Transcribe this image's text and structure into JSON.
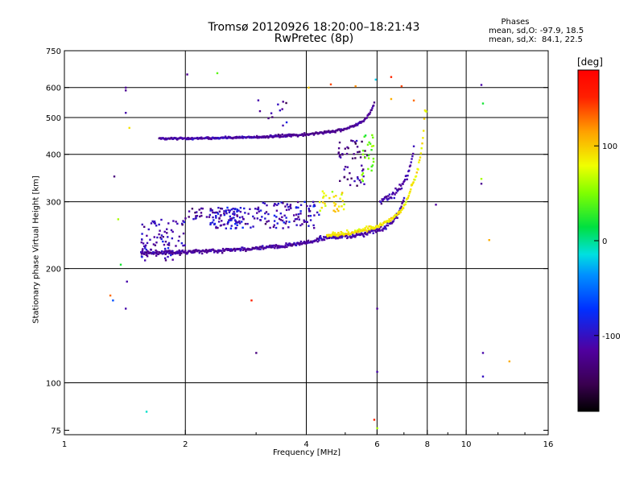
{
  "header": {
    "title_line1": "Tromsø 20120926 18:20:00–18:21:43",
    "title_line2": "RwPretec (8p)"
  },
  "stats": {
    "heading": "Phases",
    "line_o": "mean, sd,O: -97.9, 18.5",
    "line_x": "mean, sd,X:  84.1, 22.5"
  },
  "colorbar": {
    "unit_label": "[deg]",
    "ticks": [
      {
        "value": 100,
        "label": "100"
      },
      {
        "value": 0,
        "label": "0"
      },
      {
        "value": -100,
        "label": "-100"
      }
    ],
    "range": [
      -180,
      180
    ]
  },
  "chart_data": {
    "type": "scatter",
    "title": "Tromsø 20120926 18:20:00–18:21:43",
    "subtitle": "RwPretec (8p)",
    "xlabel": "Frequency [MHz]",
    "ylabel": "Stationary phase Virtual Height [km]",
    "x_scale": "log",
    "y_scale": "log",
    "xlim": [
      1,
      16
    ],
    "ylim": [
      73,
      750
    ],
    "x_ticks": [
      1,
      2,
      4,
      6,
      8,
      10,
      16
    ],
    "y_ticks": [
      75,
      100,
      200,
      300,
      400,
      500,
      600,
      750
    ],
    "grid_x": [
      2,
      4,
      6,
      8,
      10
    ],
    "grid_y": [
      100,
      200,
      300,
      400,
      500,
      600
    ],
    "grid": true,
    "color_by": "phase [deg]",
    "traces": [
      {
        "kind": "curve",
        "x0": 1.72,
        "x1": 3.0,
        "h0": 440,
        "h1": 445,
        "fc": 5.4,
        "phase": -110,
        "spread": 4
      },
      {
        "kind": "curve",
        "x0": 3.0,
        "x1": 5.9,
        "h0": 445,
        "h1": 550,
        "fc": 6.1,
        "phase": -120,
        "spread": 5
      },
      {
        "kind": "curve",
        "x0": 1.55,
        "x1": 4.3,
        "h0": 220,
        "h1": 238,
        "fc": 7.2,
        "phase": -115,
        "spread": 4
      },
      {
        "kind": "curve",
        "x0": 4.3,
        "x1": 7.0,
        "h0": 240,
        "h1": 310,
        "fc": 7.2,
        "phase": -110,
        "spread": 6
      },
      {
        "kind": "curve",
        "x0": 4.5,
        "x1": 7.3,
        "h0": 245,
        "h1": 330,
        "fc": 7.6,
        "phase": 88,
        "spread": 5
      },
      {
        "kind": "curve",
        "x0": 7.3,
        "x1": 7.95,
        "h0": 330,
        "h1": 520,
        "fc": 8.0,
        "phase": 85,
        "spread": 6
      },
      {
        "kind": "curve",
        "x0": 6.1,
        "x1": 7.4,
        "h0": 300,
        "h1": 420,
        "fc": 7.6,
        "phase": -112,
        "spread": 10
      }
    ],
    "clusters": [
      {
        "x": [
          1.55,
          2.0
        ],
        "h": [
          210,
          270
        ],
        "n": 90,
        "phase": -110
      },
      {
        "x": [
          2.3,
          3.1
        ],
        "h": [
          255,
          290
        ],
        "n": 110,
        "phase": -100
      },
      {
        "x": [
          3.1,
          4.3
        ],
        "h": [
          255,
          300
        ],
        "n": 90,
        "phase": -105
      },
      {
        "x": [
          2.0,
          2.5
        ],
        "h": [
          270,
          290
        ],
        "n": 25,
        "phase": -115
      },
      {
        "x": [
          3.0,
          3.6
        ],
        "h": [
          470,
          560
        ],
        "n": 12,
        "phase": -120
      },
      {
        "x": [
          4.8,
          5.7
        ],
        "h": [
          330,
          440
        ],
        "n": 50,
        "phase": -125
      },
      {
        "x": [
          4.3,
          5.0
        ],
        "h": [
          280,
          320
        ],
        "n": 30,
        "phase": 85
      },
      {
        "x": [
          5.5,
          5.9
        ],
        "h": [
          330,
          450
        ],
        "n": 25,
        "phase": 40
      }
    ],
    "outliers": [
      {
        "x": 1.42,
        "h": 600,
        "phase": -120
      },
      {
        "x": 1.42,
        "h": 590,
        "phase": -120
      },
      {
        "x": 1.42,
        "h": 515,
        "phase": -110
      },
      {
        "x": 1.45,
        "h": 470,
        "phase": 90
      },
      {
        "x": 1.33,
        "h": 350,
        "phase": -130
      },
      {
        "x": 1.36,
        "h": 270,
        "phase": 60
      },
      {
        "x": 1.38,
        "h": 205,
        "phase": 20
      },
      {
        "x": 1.3,
        "h": 170,
        "phase": 130
      },
      {
        "x": 1.32,
        "h": 165,
        "phase": -60
      },
      {
        "x": 1.43,
        "h": 185,
        "phase": -110
      },
      {
        "x": 1.42,
        "h": 157,
        "phase": -110
      },
      {
        "x": 1.6,
        "h": 84,
        "phase": -10
      },
      {
        "x": 2.02,
        "h": 650,
        "phase": -120
      },
      {
        "x": 2.4,
        "h": 655,
        "phase": 40
      },
      {
        "x": 2.92,
        "h": 165,
        "phase": 150
      },
      {
        "x": 3.0,
        "h": 120,
        "phase": -130
      },
      {
        "x": 4.05,
        "h": 600,
        "phase": 100
      },
      {
        "x": 4.6,
        "h": 612,
        "phase": 140
      },
      {
        "x": 5.3,
        "h": 605,
        "phase": 120
      },
      {
        "x": 5.95,
        "h": 630,
        "phase": -20
      },
      {
        "x": 6.5,
        "h": 640,
        "phase": 150
      },
      {
        "x": 6.9,
        "h": 605,
        "phase": 140
      },
      {
        "x": 6.5,
        "h": 560,
        "phase": 110
      },
      {
        "x": 6.0,
        "h": 157,
        "phase": -120
      },
      {
        "x": 6.0,
        "h": 107,
        "phase": -110
      },
      {
        "x": 5.9,
        "h": 80,
        "phase": 150
      },
      {
        "x": 6.0,
        "h": 76,
        "phase": 60
      },
      {
        "x": 7.4,
        "h": 555,
        "phase": 130
      },
      {
        "x": 8.4,
        "h": 295,
        "phase": -115
      },
      {
        "x": 10.9,
        "h": 610,
        "phase": -110
      },
      {
        "x": 11.0,
        "h": 545,
        "phase": 20
      },
      {
        "x": 10.9,
        "h": 345,
        "phase": 60
      },
      {
        "x": 10.9,
        "h": 335,
        "phase": -120
      },
      {
        "x": 11.0,
        "h": 120,
        "phase": -110
      },
      {
        "x": 11.0,
        "h": 104,
        "phase": -100
      },
      {
        "x": 11.4,
        "h": 238,
        "phase": 110
      },
      {
        "x": 12.8,
        "h": 114,
        "phase": 110
      }
    ]
  }
}
